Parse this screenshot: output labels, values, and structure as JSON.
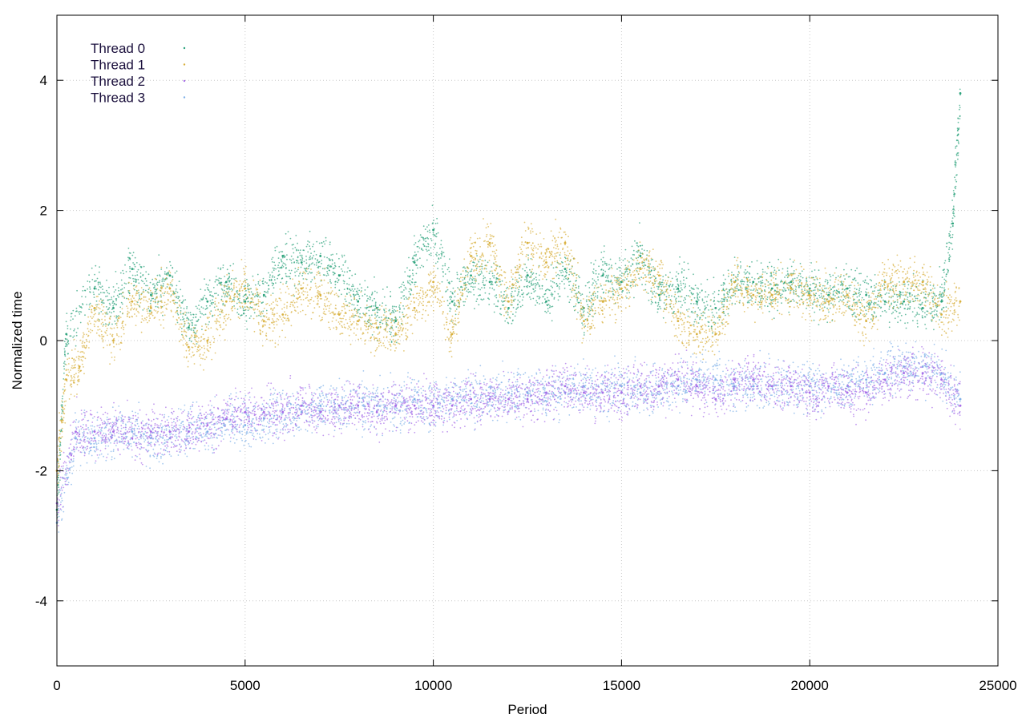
{
  "chart_data": {
    "type": "scatter",
    "title": "",
    "xlabel": "Period",
    "ylabel": "Normalized time",
    "xlim": [
      0,
      25000
    ],
    "ylim": [
      -5,
      5
    ],
    "x_ticks": [
      0,
      5000,
      10000,
      15000,
      20000,
      25000
    ],
    "x_tick_labels": [
      "0",
      "5000",
      "10000",
      "15000",
      "20000",
      "25000"
    ],
    "y_ticks": [
      -4,
      -2,
      0,
      2,
      4
    ],
    "y_tick_labels": [
      "-4",
      "-2",
      "0",
      "2",
      "4"
    ],
    "grid": true,
    "legend_position": "top-left",
    "series": [
      {
        "name": "Thread 0",
        "color": "#2ca37c",
        "values": [
          [
            0,
            -2.6
          ],
          [
            250,
            0.1
          ],
          [
            1000,
            0.8
          ],
          [
            1500,
            0.5
          ],
          [
            2000,
            1.1
          ],
          [
            2500,
            0.7
          ],
          [
            3000,
            1.0
          ],
          [
            3500,
            0.2
          ],
          [
            4000,
            0.6
          ],
          [
            4500,
            0.9
          ],
          [
            5000,
            0.6
          ],
          [
            5500,
            0.7
          ],
          [
            6000,
            1.3
          ],
          [
            6500,
            1.2
          ],
          [
            7000,
            1.3
          ],
          [
            7500,
            1.0
          ],
          [
            8000,
            0.6
          ],
          [
            8500,
            0.5
          ],
          [
            9000,
            0.3
          ],
          [
            9500,
            1.2
          ],
          [
            10000,
            1.7
          ],
          [
            10500,
            0.6
          ],
          [
            11000,
            1.0
          ],
          [
            11500,
            0.9
          ],
          [
            12000,
            0.5
          ],
          [
            12500,
            1.0
          ],
          [
            13000,
            0.6
          ],
          [
            13500,
            1.1
          ],
          [
            14000,
            0.5
          ],
          [
            14500,
            1.0
          ],
          [
            15000,
            0.9
          ],
          [
            15500,
            1.3
          ],
          [
            16000,
            0.7
          ],
          [
            16500,
            0.8
          ],
          [
            17000,
            0.6
          ],
          [
            17500,
            0.5
          ],
          [
            18000,
            0.9
          ],
          [
            18500,
            0.9
          ],
          [
            19000,
            0.8
          ],
          [
            19500,
            0.9
          ],
          [
            20000,
            0.8
          ],
          [
            20500,
            0.7
          ],
          [
            21000,
            0.8
          ],
          [
            21500,
            0.7
          ],
          [
            22000,
            0.6
          ],
          [
            22500,
            0.6
          ],
          [
            23000,
            0.5
          ],
          [
            23500,
            0.6
          ],
          [
            23800,
            1.8
          ],
          [
            24000,
            3.8
          ]
        ]
      },
      {
        "name": "Thread 1",
        "color": "#d9b13f",
        "values": [
          [
            0,
            -2.0
          ],
          [
            250,
            -0.6
          ],
          [
            600,
            -0.4
          ],
          [
            1000,
            0.5
          ],
          [
            1500,
            0.0
          ],
          [
            2000,
            0.6
          ],
          [
            2500,
            0.5
          ],
          [
            3000,
            0.8
          ],
          [
            3500,
            -0.1
          ],
          [
            4000,
            0.0
          ],
          [
            4500,
            0.6
          ],
          [
            5000,
            0.8
          ],
          [
            5500,
            0.3
          ],
          [
            6000,
            0.4
          ],
          [
            6500,
            0.8
          ],
          [
            7000,
            0.7
          ],
          [
            7500,
            0.4
          ],
          [
            8000,
            0.3
          ],
          [
            8500,
            0.2
          ],
          [
            9000,
            0.1
          ],
          [
            9500,
            0.5
          ],
          [
            10000,
            0.9
          ],
          [
            10500,
            0.1
          ],
          [
            11000,
            1.3
          ],
          [
            11500,
            1.5
          ],
          [
            12000,
            0.6
          ],
          [
            12500,
            1.5
          ],
          [
            13000,
            1.2
          ],
          [
            13500,
            1.5
          ],
          [
            14000,
            0.3
          ],
          [
            14500,
            0.6
          ],
          [
            15000,
            0.8
          ],
          [
            15500,
            1.1
          ],
          [
            16000,
            1.0
          ],
          [
            16500,
            0.3
          ],
          [
            17000,
            0.1
          ],
          [
            17500,
            0.1
          ],
          [
            18000,
            0.9
          ],
          [
            18500,
            0.7
          ],
          [
            19000,
            0.7
          ],
          [
            19500,
            0.8
          ],
          [
            20000,
            0.7
          ],
          [
            20500,
            0.6
          ],
          [
            21000,
            0.7
          ],
          [
            21500,
            0.3
          ],
          [
            22000,
            0.9
          ],
          [
            22500,
            0.9
          ],
          [
            23000,
            0.9
          ],
          [
            23500,
            0.4
          ],
          [
            24000,
            0.6
          ]
        ]
      },
      {
        "name": "Thread 2",
        "color": "#a86ee8",
        "values": [
          [
            0,
            -2.5
          ],
          [
            500,
            -1.4
          ],
          [
            1000,
            -1.4
          ],
          [
            1500,
            -1.4
          ],
          [
            2000,
            -1.5
          ],
          [
            2500,
            -1.4
          ],
          [
            3000,
            -1.4
          ],
          [
            3500,
            -1.4
          ],
          [
            4000,
            -1.3
          ],
          [
            4500,
            -1.2
          ],
          [
            5000,
            -1.1
          ],
          [
            5500,
            -1.1
          ],
          [
            6000,
            -1.1
          ],
          [
            6500,
            -1.0
          ],
          [
            7000,
            -1.1
          ],
          [
            7500,
            -1.0
          ],
          [
            8000,
            -1.0
          ],
          [
            8500,
            -1.1
          ],
          [
            9000,
            -1.0
          ],
          [
            9500,
            -1.0
          ],
          [
            10000,
            -1.0
          ],
          [
            10500,
            -1.0
          ],
          [
            11000,
            -0.9
          ],
          [
            11500,
            -0.9
          ],
          [
            12000,
            -0.9
          ],
          [
            12500,
            -0.9
          ],
          [
            13000,
            -0.8
          ],
          [
            13500,
            -0.7
          ],
          [
            14000,
            -0.8
          ],
          [
            14500,
            -0.8
          ],
          [
            15000,
            -0.8
          ],
          [
            15500,
            -0.7
          ],
          [
            16000,
            -0.7
          ],
          [
            16500,
            -0.6
          ],
          [
            17000,
            -0.7
          ],
          [
            17500,
            -0.9
          ],
          [
            18000,
            -0.6
          ],
          [
            18500,
            -0.6
          ],
          [
            19000,
            -0.7
          ],
          [
            19500,
            -0.7
          ],
          [
            20000,
            -0.8
          ],
          [
            20500,
            -0.7
          ],
          [
            21000,
            -0.8
          ],
          [
            21500,
            -0.8
          ],
          [
            22000,
            -0.6
          ],
          [
            22500,
            -0.5
          ],
          [
            23000,
            -0.5
          ],
          [
            23500,
            -0.6
          ],
          [
            24000,
            -1.0
          ]
        ]
      },
      {
        "name": "Thread 3",
        "color": "#7fb0e8",
        "values": [
          [
            0,
            -2.8
          ],
          [
            500,
            -1.5
          ],
          [
            1000,
            -1.5
          ],
          [
            1500,
            -1.4
          ],
          [
            2000,
            -1.4
          ],
          [
            2500,
            -1.5
          ],
          [
            3000,
            -1.5
          ],
          [
            3500,
            -1.4
          ],
          [
            4000,
            -1.4
          ],
          [
            4500,
            -1.2
          ],
          [
            5000,
            -1.3
          ],
          [
            5500,
            -1.2
          ],
          [
            6000,
            -1.1
          ],
          [
            6500,
            -1.1
          ],
          [
            7000,
            -1.0
          ],
          [
            7500,
            -1.0
          ],
          [
            8000,
            -1.0
          ],
          [
            8500,
            -1.0
          ],
          [
            9000,
            -1.0
          ],
          [
            9500,
            -0.9
          ],
          [
            10000,
            -1.0
          ],
          [
            10500,
            -0.9
          ],
          [
            11000,
            -0.9
          ],
          [
            11500,
            -0.9
          ],
          [
            12000,
            -0.8
          ],
          [
            12500,
            -0.8
          ],
          [
            13000,
            -0.8
          ],
          [
            13500,
            -0.8
          ],
          [
            14000,
            -0.7
          ],
          [
            14500,
            -0.8
          ],
          [
            15000,
            -0.7
          ],
          [
            15500,
            -0.8
          ],
          [
            16000,
            -0.7
          ],
          [
            16500,
            -0.7
          ],
          [
            17000,
            -0.6
          ],
          [
            17500,
            -0.6
          ],
          [
            18000,
            -0.7
          ],
          [
            18500,
            -0.7
          ],
          [
            19000,
            -0.7
          ],
          [
            19500,
            -0.7
          ],
          [
            20000,
            -0.7
          ],
          [
            20500,
            -0.7
          ],
          [
            21000,
            -0.7
          ],
          [
            21500,
            -0.6
          ],
          [
            22000,
            -0.5
          ],
          [
            22500,
            -0.4
          ],
          [
            23000,
            -0.4
          ],
          [
            23500,
            -0.5
          ],
          [
            24000,
            -0.9
          ]
        ]
      }
    ]
  }
}
